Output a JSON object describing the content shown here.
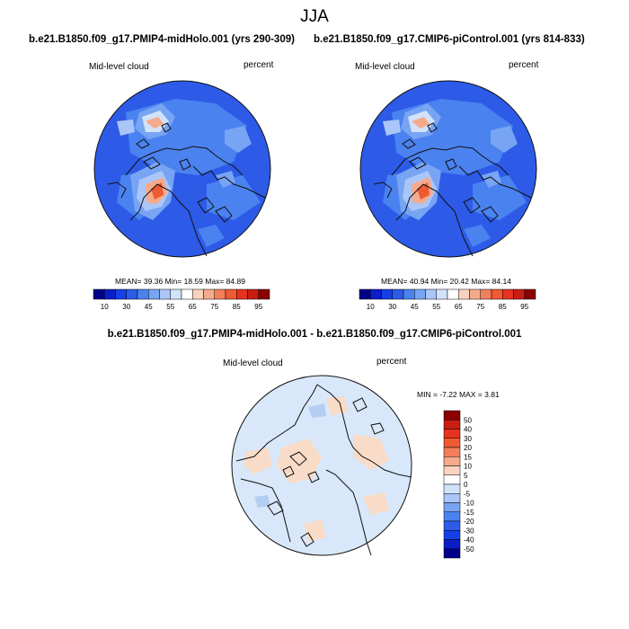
{
  "title": "JJA",
  "colors": {
    "ocean_base": "#2d5be8",
    "ocean_light": "#4a82f0",
    "coast": "#111111",
    "diff_base": "#d8e8fa",
    "diff_warm": "#f8dcc8",
    "diff_cool": "#b4cdf2"
  },
  "panels": {
    "left": {
      "case": "b.e21.B1850.f09_g17.PMIP4-midHolo.001 (yrs 290-309)",
      "variable": "Mid-level cloud",
      "units": "percent",
      "mean_label": "MEAN=",
      "mean": "39.36",
      "min_label": "Min=",
      "min": "18.59",
      "max_label": "Max=",
      "max": "84.89"
    },
    "right": {
      "case": "b.e21.B1850.f09_g17.CMIP6-piControl.001 (yrs 814-833)",
      "variable": "Mid-level cloud",
      "units": "percent",
      "mean_label": "MEAN=",
      "mean": "40.94",
      "min_label": "Min=",
      "min": "20.42",
      "max_label": "Max=",
      "max": "84.14"
    },
    "diff": {
      "title": "b.e21.B1850.f09_g17.PMIP4-midHolo.001 - b.e21.B1850.f09_g17.CMIP6-piControl.001",
      "variable": "Mid-level cloud",
      "units": "percent",
      "min_label": "MIN =",
      "min": "-7.22",
      "max_label": "MAX =",
      "max": "3.81"
    }
  },
  "colorbar_main": {
    "colors": [
      "#00008b",
      "#0a1ec8",
      "#1440e6",
      "#2d5be8",
      "#4a82f0",
      "#78a4f4",
      "#aac6f8",
      "#d2e2fa",
      "#ffffff",
      "#fad2c0",
      "#f6aa8c",
      "#f27e5a",
      "#ee5a32",
      "#e6321e",
      "#c81e14",
      "#8b0000"
    ],
    "tick_labels": [
      "10",
      "30",
      "45",
      "55",
      "65",
      "75",
      "85",
      "95"
    ]
  },
  "colorbar_diff": {
    "colors": [
      "#8b0000",
      "#c81e14",
      "#e6321e",
      "#ee5a32",
      "#f27e5a",
      "#f6aa8c",
      "#fad2c0",
      "#ffffff",
      "#d2e2fa",
      "#aac6f8",
      "#78a4f4",
      "#4a82f0",
      "#2d5be8",
      "#1440e6",
      "#0a1ec8",
      "#00008b"
    ],
    "tick_labels": [
      "50",
      "40",
      "30",
      "20",
      "15",
      "10",
      "5",
      "0",
      "-5",
      "-10",
      "-15",
      "-20",
      "-30",
      "-40",
      "-50"
    ]
  }
}
